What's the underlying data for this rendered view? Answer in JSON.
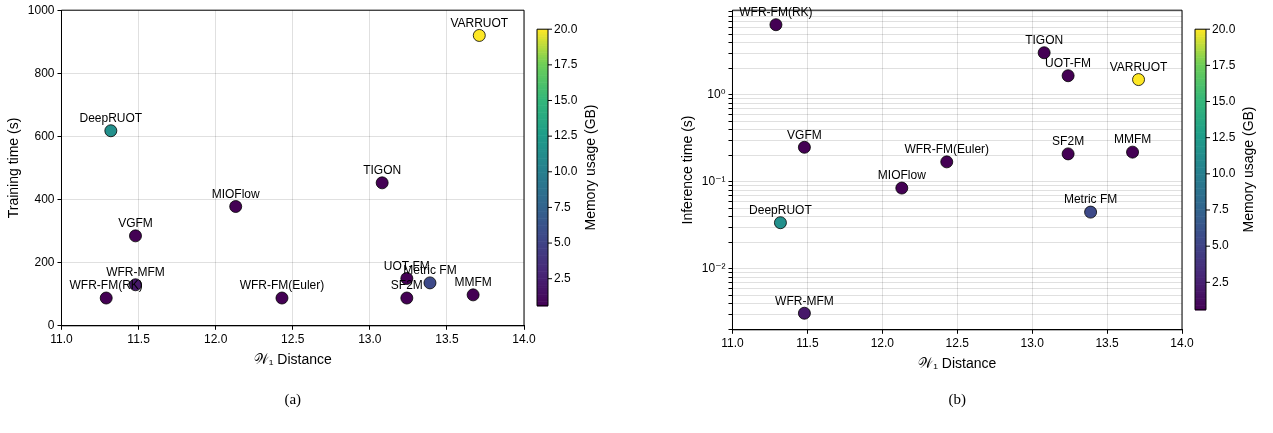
{
  "chart_data": [
    {
      "type": "scatter",
      "xlabel": "𝒲₁ Distance",
      "ylabel": "Training time (s)",
      "clabel": "Memory usage (GB)",
      "marker": "circle",
      "grid": true,
      "legend": false,
      "xlim": [
        11,
        14
      ],
      "xticks": [
        {
          "value": 11,
          "label": "11.0"
        },
        {
          "value": 11.5,
          "label": "11.5"
        },
        {
          "value": 12,
          "label": "12.0"
        },
        {
          "value": 12.5,
          "label": "12.5"
        },
        {
          "value": 13,
          "label": "13.0"
        },
        {
          "value": 13.5,
          "label": "13.5"
        },
        {
          "value": 14,
          "label": "14.0"
        }
      ],
      "ylim": [
        0,
        1000
      ],
      "yticks": [
        0,
        200,
        400,
        600,
        800,
        1000
      ],
      "clim": [
        0.6,
        20
      ],
      "cticks": [
        2.5,
        {
          "value": 5,
          "label": "5.0"
        },
        7.5,
        {
          "value": 10,
          "label": "10.0"
        },
        12.5,
        {
          "value": 15,
          "label": "15.0"
        },
        17.5,
        {
          "value": 20,
          "label": "20.0"
        }
      ],
      "x": [
        11.29,
        11.48,
        11.48,
        11.32,
        12.13,
        12.43,
        13.08,
        13.24,
        13.24,
        13.39,
        13.67,
        13.71
      ],
      "values": [
        88,
        130,
        285,
        618,
        378,
        88,
        453,
        150,
        88,
        136,
        98,
        920
      ],
      "cvalues": [
        0.6,
        2,
        0.6,
        11.5,
        0.6,
        0.6,
        0.6,
        0.6,
        0.6,
        5.5,
        0.6,
        20
      ],
      "annotations": [
        {
          "text": "WFR-FM(RK)",
          "x": 11.29,
          "y": 88
        },
        {
          "text": "WFR-MFM",
          "x": 11.48,
          "y": 130
        },
        {
          "text": "VGFM",
          "x": 11.48,
          "y": 285
        },
        {
          "text": "DeepRUOT",
          "x": 11.32,
          "y": 618
        },
        {
          "text": "MIOFlow",
          "x": 12.13,
          "y": 378
        },
        {
          "text": "WFR-FM(Euler)",
          "x": 12.43,
          "y": 88
        },
        {
          "text": "TIGON",
          "x": 13.08,
          "y": 453
        },
        {
          "text": "UOT-FM",
          "x": 13.24,
          "y": 150
        },
        {
          "text": "SF2M",
          "x": 13.24,
          "y": 88
        },
        {
          "text": "Metric FM",
          "x": 13.39,
          "y": 136
        },
        {
          "text": "MMFM",
          "x": 13.67,
          "y": 98
        },
        {
          "text": "VARRUOT",
          "x": 13.71,
          "y": 920
        },
        "(a)"
      ]
    },
    {
      "type": "scatter",
      "xlabel": "𝒲₁ Distance",
      "ylabel": "Inference time (s)",
      "clabel": "Memory usage (GB)",
      "marker": "circle",
      "grid": true,
      "legend": false,
      "log": "y",
      "xlim": [
        11,
        14
      ],
      "xticks": [
        {
          "value": 11,
          "label": "11.0"
        },
        {
          "value": 11.5,
          "label": "11.5"
        },
        {
          "value": 12,
          "label": "12.0"
        },
        {
          "value": 12.5,
          "label": "12.5"
        },
        {
          "value": 13,
          "label": "13.0"
        },
        {
          "value": 13.5,
          "label": "13.5"
        },
        {
          "value": 14,
          "label": "14.0"
        }
      ],
      "ylim": [
        0.002,
        9.4
      ],
      "yticks": [
        {
          "value": 0.002,
          "label": null
        },
        {
          "value": 0.003,
          "label": null
        },
        {
          "value": 0.004,
          "label": null
        },
        {
          "value": 0.005,
          "label": null
        },
        {
          "value": 0.006,
          "label": null
        },
        {
          "value": 0.007,
          "label": null
        },
        {
          "value": 0.008,
          "label": null
        },
        {
          "value": 0.009,
          "label": null
        },
        {
          "value": 0.01,
          "label": "10⁻²"
        },
        {
          "value": 0.02,
          "label": null
        },
        {
          "value": 0.03,
          "label": null
        },
        {
          "value": 0.04,
          "label": null
        },
        {
          "value": 0.05,
          "label": null
        },
        {
          "value": 0.06,
          "label": null
        },
        {
          "value": 0.07,
          "label": null
        },
        {
          "value": 0.08,
          "label": null
        },
        {
          "value": 0.09,
          "label": null
        },
        {
          "value": 0.1,
          "label": "10⁻¹"
        },
        {
          "value": 0.2,
          "label": null
        },
        {
          "value": 0.3,
          "label": null
        },
        {
          "value": 0.4,
          "label": null
        },
        {
          "value": 0.5,
          "label": null
        },
        {
          "value": 0.6,
          "label": null
        },
        {
          "value": 0.7,
          "label": null
        },
        {
          "value": 0.8,
          "label": null
        },
        {
          "value": 0.9,
          "label": null
        },
        {
          "value": 1,
          "label": "10⁰"
        },
        {
          "value": 2,
          "label": null
        },
        {
          "value": 3,
          "label": null
        },
        {
          "value": 4,
          "label": null
        },
        {
          "value": 5,
          "label": null
        },
        {
          "value": 6,
          "label": null
        },
        {
          "value": 7,
          "label": null
        },
        {
          "value": 8,
          "label": null
        },
        {
          "value": 9,
          "label": null
        }
      ],
      "clim": [
        0.6,
        20
      ],
      "cticks": [
        2.5,
        {
          "value": 5,
          "label": "5.0"
        },
        7.5,
        {
          "value": 10,
          "label": "10.0"
        },
        12.5,
        {
          "value": 15,
          "label": "15.0"
        },
        17.5,
        {
          "value": 20,
          "label": "20.0"
        }
      ],
      "x": [
        11.29,
        11.48,
        11.48,
        11.32,
        12.13,
        12.43,
        13.08,
        13.24,
        13.24,
        13.39,
        13.67,
        13.71
      ],
      "values": [
        6.4,
        0.0031,
        0.25,
        0.034,
        0.085,
        0.17,
        3.05,
        1.66,
        0.21,
        0.045,
        0.22,
        1.5
      ],
      "cvalues": [
        0.6,
        2,
        0.6,
        11.5,
        0.6,
        0.6,
        0.6,
        0.6,
        0.6,
        5.5,
        0.6,
        20
      ],
      "annotations": [
        {
          "text": "WFR-FM(RK)",
          "x": 11.29,
          "y": 6.4
        },
        {
          "text": "WFR-MFM",
          "x": 11.48,
          "y": 0.0031
        },
        {
          "text": "VGFM",
          "x": 11.48,
          "y": 0.25
        },
        {
          "text": "DeepRUOT",
          "x": 11.32,
          "y": 0.034
        },
        {
          "text": "MIOFlow",
          "x": 12.13,
          "y": 0.085
        },
        {
          "text": "WFR-FM(Euler)",
          "x": 12.43,
          "y": 0.17
        },
        {
          "text": "TIGON",
          "x": 13.08,
          "y": 3.05
        },
        {
          "text": "UOT-FM",
          "x": 13.24,
          "y": 1.66
        },
        {
          "text": "SF2M",
          "x": 13.24,
          "y": 0.21
        },
        {
          "text": "Metric FM",
          "x": 13.39,
          "y": 0.045
        },
        {
          "text": "MMFM",
          "x": 13.67,
          "y": 0.22
        },
        {
          "text": "VARRUOT",
          "x": 13.71,
          "y": 1.5
        },
        "(b)"
      ]
    }
  ]
}
